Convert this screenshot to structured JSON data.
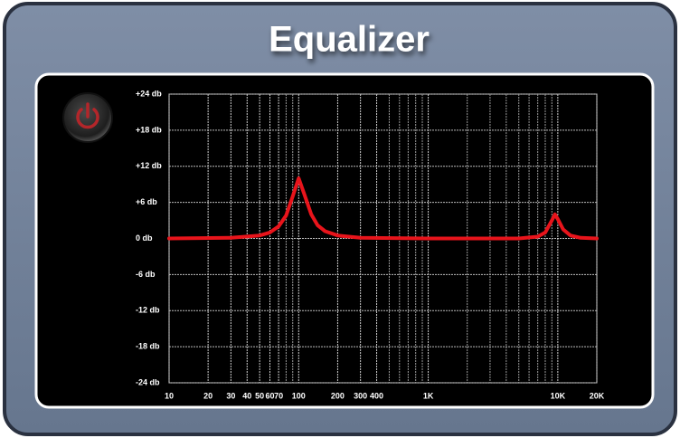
{
  "chart_data": {
    "type": "line",
    "title": "Equalizer",
    "x_scale": "log",
    "x": [
      10,
      30,
      50,
      60,
      70,
      80,
      90,
      100,
      110,
      125,
      140,
      160,
      200,
      300,
      1000,
      5000,
      7000,
      8000,
      9000,
      9500,
      10000,
      11000,
      12500,
      15000,
      20000
    ],
    "series": [
      {
        "color": "#e8141b",
        "values": [
          0,
          0.1,
          0.5,
          1,
          2,
          3.8,
          7,
          10,
          7.5,
          4,
          2.2,
          1.2,
          0.5,
          0.1,
          0,
          0,
          0.3,
          1,
          3,
          4,
          3.2,
          1.5,
          0.5,
          0.1,
          0
        ]
      }
    ],
    "xlim": [
      10,
      20000
    ],
    "xticks": [
      10,
      20,
      30,
      40,
      50,
      60,
      70,
      100,
      200,
      300,
      400,
      {
        "value": 1000,
        "label": "1K"
      },
      {
        "value": 10000,
        "label": "10K"
      },
      {
        "value": 20000,
        "label": "20K"
      }
    ],
    "xminorticks": [
      80,
      90,
      500,
      600,
      700,
      800,
      900,
      2000,
      3000,
      4000,
      5000,
      6000,
      7000,
      8000,
      9000
    ],
    "ylim": [
      -24,
      24
    ],
    "yticks": [
      {
        "value": 24,
        "label": "+24 db"
      },
      {
        "value": 18,
        "label": "+18 db"
      },
      {
        "value": 12,
        "label": "+12 db"
      },
      {
        "value": 6,
        "label": "+6 db"
      },
      {
        "value": 0,
        "label": "0 db"
      },
      {
        "value": -6,
        "label": "-6 db"
      },
      {
        "value": -12,
        "label": "-12 db"
      },
      {
        "value": -18,
        "label": "-18 db"
      },
      {
        "value": -24,
        "label": "-24 db"
      }
    ],
    "grid": true
  }
}
